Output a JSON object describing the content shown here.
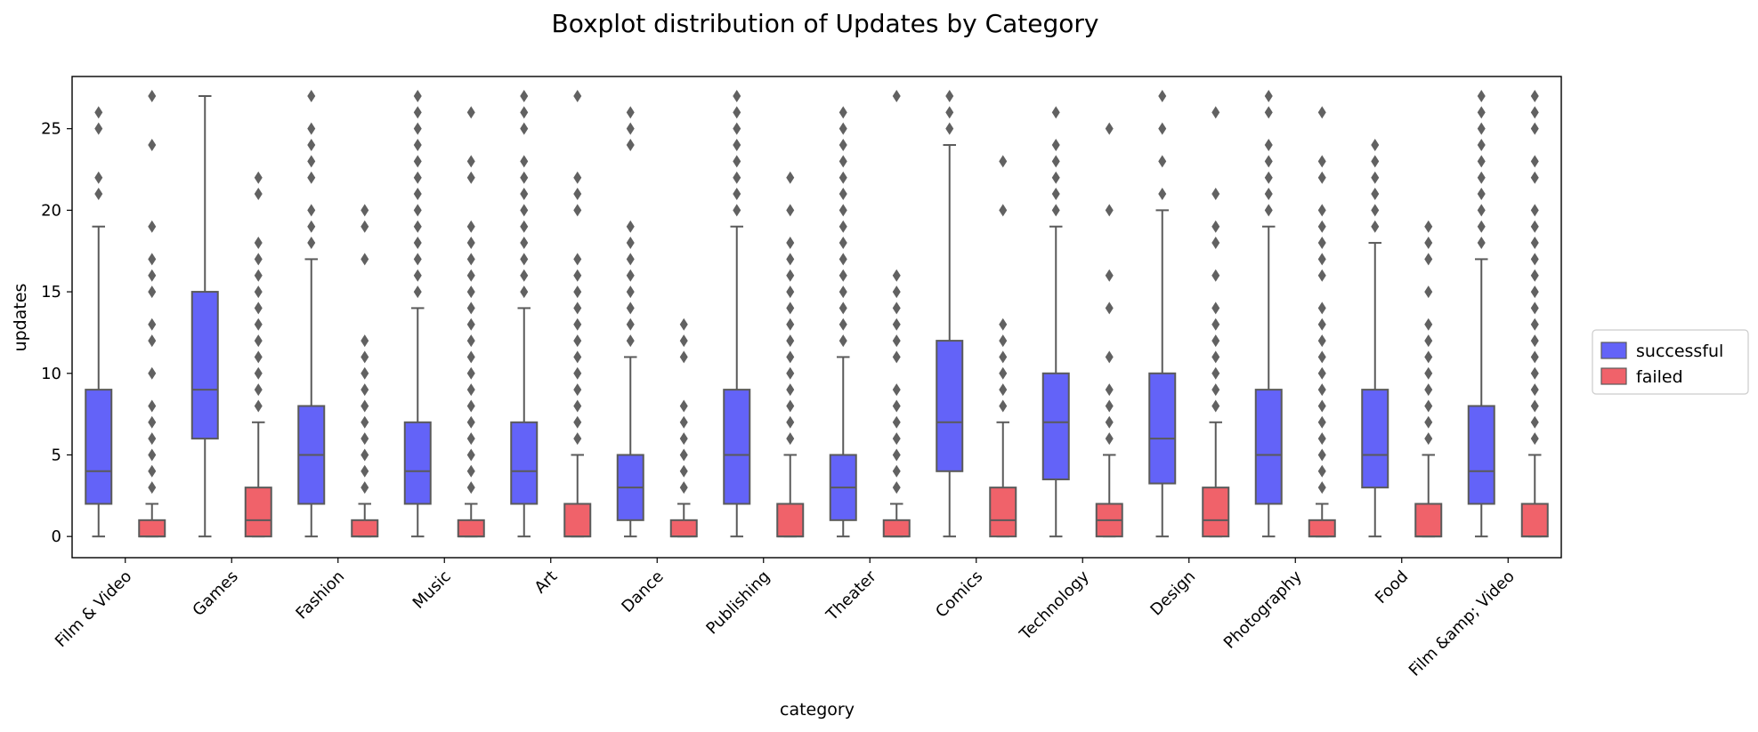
{
  "chart_data": {
    "type": "boxplot",
    "title": "Boxplot distribution of Updates by Category",
    "xlabel": "category",
    "ylabel": "updates",
    "ylim": [
      -1.3,
      28.2
    ],
    "yticks": [
      0,
      5,
      10,
      15,
      20,
      25
    ],
    "grid": false,
    "legend_position": "right",
    "categories": [
      "Film & Video",
      "Games",
      "Fashion",
      "Music",
      "Art",
      "Dance",
      "Publishing",
      "Theater",
      "Comics",
      "Technology",
      "Design",
      "Photography",
      "Food",
      "Film &amp; Video"
    ],
    "series": [
      {
        "name": "successful",
        "color": "#6363f8",
        "boxes": [
          {
            "whislo": 0,
            "q1": 2,
            "med": 4,
            "q3": 9,
            "whishi": 19,
            "fliers": [
              21,
              22,
              25,
              26
            ]
          },
          {
            "whislo": 0,
            "q1": 6,
            "med": 9,
            "q3": 15,
            "whishi": 27,
            "fliers": []
          },
          {
            "whislo": 0,
            "q1": 2,
            "med": 5,
            "q3": 8,
            "whishi": 17,
            "fliers": [
              18,
              19,
              20,
              22,
              23,
              24,
              25,
              27
            ]
          },
          {
            "whislo": 0,
            "q1": 2,
            "med": 4,
            "q3": 7,
            "whishi": 14,
            "fliers": [
              15,
              16,
              17,
              18,
              19,
              20,
              21,
              22,
              23,
              24,
              25,
              26,
              27
            ]
          },
          {
            "whislo": 0,
            "q1": 2,
            "med": 4,
            "q3": 7,
            "whishi": 14,
            "fliers": [
              15,
              16,
              17,
              18,
              19,
              20,
              21,
              22,
              23,
              25,
              26,
              27
            ]
          },
          {
            "whislo": 0,
            "q1": 1,
            "med": 3,
            "q3": 5,
            "whishi": 11,
            "fliers": [
              12,
              13,
              14,
              15,
              16,
              17,
              18,
              19,
              24,
              25,
              26
            ]
          },
          {
            "whislo": 0,
            "q1": 2,
            "med": 5,
            "q3": 9,
            "whishi": 19,
            "fliers": [
              20,
              21,
              22,
              23,
              24,
              25,
              26,
              27
            ]
          },
          {
            "whislo": 0,
            "q1": 1,
            "med": 3,
            "q3": 5,
            "whishi": 11,
            "fliers": [
              12,
              13,
              14,
              15,
              16,
              17,
              18,
              19,
              20,
              21,
              22,
              23,
              24,
              25,
              26
            ]
          },
          {
            "whislo": 0,
            "q1": 4,
            "med": 7,
            "q3": 12,
            "whishi": 24,
            "fliers": [
              25,
              26,
              27
            ]
          },
          {
            "whislo": 0,
            "q1": 3.5,
            "med": 7,
            "q3": 10,
            "whishi": 19,
            "fliers": [
              20,
              21,
              22,
              23,
              24,
              26
            ]
          },
          {
            "whislo": 0,
            "q1": 3.25,
            "med": 6,
            "q3": 10,
            "whishi": 20,
            "fliers": [
              21,
              23,
              25,
              27
            ]
          },
          {
            "whislo": 0,
            "q1": 2,
            "med": 5,
            "q3": 9,
            "whishi": 19,
            "fliers": [
              20,
              21,
              22,
              23,
              24,
              26,
              27
            ]
          },
          {
            "whislo": 0,
            "q1": 3,
            "med": 5,
            "q3": 9,
            "whishi": 18,
            "fliers": [
              19,
              20,
              21,
              22,
              23,
              24
            ]
          },
          {
            "whislo": 0,
            "q1": 2,
            "med": 4,
            "q3": 8,
            "whishi": 17,
            "fliers": [
              18,
              19,
              20,
              21,
              22,
              23,
              24,
              25,
              26,
              27
            ]
          }
        ]
      },
      {
        "name": "failed",
        "color": "#f0626a",
        "boxes": [
          {
            "whislo": 0,
            "q1": 0,
            "med": 0,
            "q3": 1,
            "whishi": 2,
            "fliers": [
              3,
              4,
              5,
              6,
              7,
              8,
              10,
              12,
              13,
              15,
              16,
              17,
              19,
              24,
              27
            ]
          },
          {
            "whislo": 0,
            "q1": 0,
            "med": 1,
            "q3": 3,
            "whishi": 7,
            "fliers": [
              8,
              9,
              10,
              11,
              12,
              13,
              14,
              15,
              16,
              17,
              18,
              21,
              22
            ]
          },
          {
            "whislo": 0,
            "q1": 0,
            "med": 0,
            "q3": 1,
            "whishi": 2,
            "fliers": [
              3,
              4,
              5,
              6,
              7,
              8,
              9,
              10,
              11,
              12,
              17,
              19,
              20
            ]
          },
          {
            "whislo": 0,
            "q1": 0,
            "med": 0,
            "q3": 1,
            "whishi": 2,
            "fliers": [
              3,
              4,
              5,
              6,
              7,
              8,
              9,
              10,
              11,
              12,
              13,
              14,
              15,
              16,
              17,
              18,
              19,
              22,
              23,
              26
            ]
          },
          {
            "whislo": 0,
            "q1": 0,
            "med": 0,
            "q3": 2,
            "whishi": 5,
            "fliers": [
              6,
              7,
              8,
              9,
              10,
              11,
              12,
              13,
              14,
              15,
              16,
              17,
              20,
              21,
              22,
              27
            ]
          },
          {
            "whislo": 0,
            "q1": 0,
            "med": 0,
            "q3": 1,
            "whishi": 2,
            "fliers": [
              3,
              4,
              5,
              6,
              7,
              8,
              11,
              12,
              13
            ]
          },
          {
            "whislo": 0,
            "q1": 0,
            "med": 0,
            "q3": 2,
            "whishi": 5,
            "fliers": [
              6,
              7,
              8,
              9,
              10,
              11,
              12,
              13,
              14,
              15,
              16,
              17,
              18,
              20,
              22
            ]
          },
          {
            "whislo": 0,
            "q1": 0,
            "med": 0,
            "q3": 1,
            "whishi": 2,
            "fliers": [
              3,
              4,
              5,
              6,
              7,
              8,
              9,
              11,
              12,
              13,
              14,
              15,
              16,
              27
            ]
          },
          {
            "whislo": 0,
            "q1": 0,
            "med": 1,
            "q3": 3,
            "whishi": 7,
            "fliers": [
              8,
              9,
              10,
              11,
              12,
              13,
              20,
              23
            ]
          },
          {
            "whislo": 0,
            "q1": 0,
            "med": 1,
            "q3": 2,
            "whishi": 5,
            "fliers": [
              6,
              7,
              8,
              9,
              11,
              14,
              16,
              20,
              25
            ]
          },
          {
            "whislo": 0,
            "q1": 0,
            "med": 1,
            "q3": 3,
            "whishi": 7,
            "fliers": [
              8,
              9,
              10,
              11,
              12,
              13,
              14,
              16,
              18,
              19,
              21,
              26
            ]
          },
          {
            "whislo": 0,
            "q1": 0,
            "med": 0,
            "q3": 1,
            "whishi": 2,
            "fliers": [
              3,
              4,
              5,
              6,
              7,
              8,
              9,
              10,
              11,
              12,
              13,
              14,
              16,
              17,
              18,
              19,
              20,
              22,
              23,
              26
            ]
          },
          {
            "whislo": 0,
            "q1": 0,
            "med": 0,
            "q3": 2,
            "whishi": 5,
            "fliers": [
              6,
              7,
              8,
              9,
              10,
              11,
              12,
              13,
              15,
              17,
              18,
              19
            ]
          },
          {
            "whislo": 0,
            "q1": 0,
            "med": 0,
            "q3": 2,
            "whishi": 5,
            "fliers": [
              6,
              7,
              8,
              9,
              10,
              11,
              12,
              13,
              14,
              15,
              16,
              17,
              18,
              19,
              20,
              22,
              23,
              25,
              26,
              27
            ]
          }
        ]
      }
    ]
  }
}
